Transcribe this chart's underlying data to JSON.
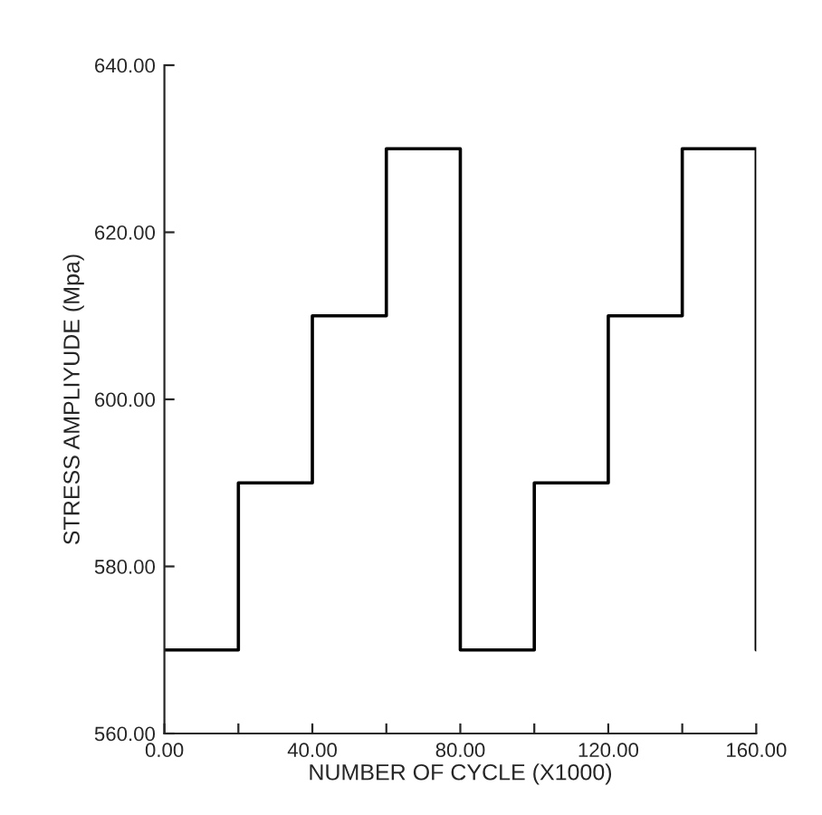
{
  "chart_data": {
    "type": "step",
    "xlabel": "NUMBER OF CYCLE (X1000)",
    "ylabel": "STRESS AMPLIYUDE (Mpa)",
    "x": [
      0,
      20,
      40,
      60,
      80,
      100,
      120,
      140,
      160,
      160
    ],
    "series": [
      {
        "color": "#000000",
        "values": [
          570,
          590,
          610,
          630,
          570,
          590,
          610,
          630,
          630,
          570
        ]
      }
    ],
    "xlim": [
      0,
      160
    ],
    "ylim": [
      560,
      640
    ],
    "xticks": [
      {
        "value": 0,
        "label": "0.00"
      },
      {
        "value": 20,
        "label": null
      },
      {
        "value": 40,
        "label": "40.00"
      },
      {
        "value": 60,
        "label": null
      },
      {
        "value": 80,
        "label": "80.00"
      },
      {
        "value": 100,
        "label": null
      },
      {
        "value": 120,
        "label": "120.00"
      },
      {
        "value": 140,
        "label": null
      },
      {
        "value": 160,
        "label": "160.00"
      }
    ],
    "yticks": [
      {
        "value": 560,
        "label": "560.00"
      },
      {
        "value": 580,
        "label": "580.00"
      },
      {
        "value": 600,
        "label": "600.00"
      },
      {
        "value": 620,
        "label": "620.00"
      },
      {
        "value": 640,
        "label": "640.00"
      }
    ],
    "grid": false,
    "legend": false,
    "marker": "none",
    "line_style": "solid"
  }
}
